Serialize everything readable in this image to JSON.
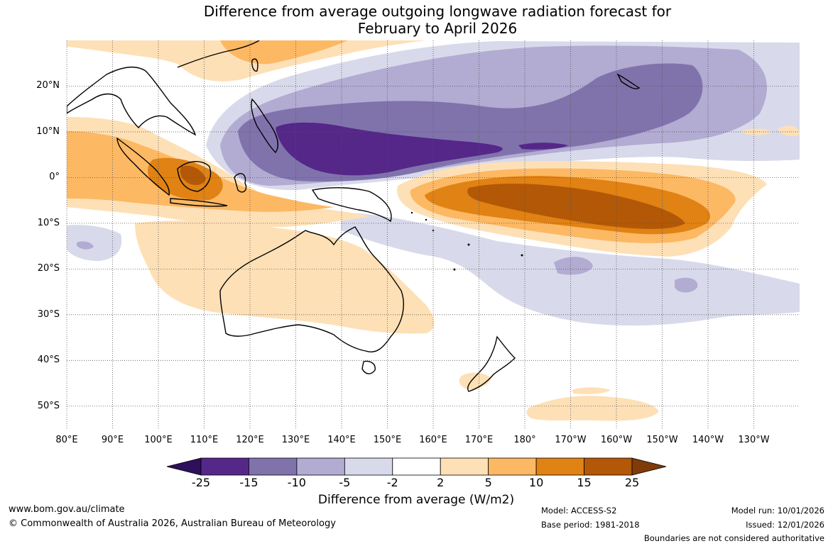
{
  "title": {
    "line1": "Difference from average outgoing longwave radiation forecast for",
    "line2": "February to April 2026"
  },
  "map": {
    "lat_labels": [
      "20°N",
      "10°N",
      "0°",
      "10°S",
      "20°S",
      "30°S",
      "40°S",
      "50°S"
    ],
    "lon_labels": [
      "80°E",
      "90°E",
      "100°E",
      "110°E",
      "120°E",
      "130°E",
      "140°E",
      "150°E",
      "160°E",
      "170°E",
      "180°",
      "170°W",
      "160°W",
      "150°W",
      "140°W",
      "130°W"
    ],
    "lat_values": [
      20,
      10,
      0,
      -10,
      -20,
      -30,
      -40,
      -50
    ],
    "lon_values": [
      80,
      90,
      100,
      110,
      120,
      130,
      140,
      150,
      160,
      170,
      180,
      190,
      200,
      210,
      220,
      230
    ],
    "extent": {
      "lon_min": 80,
      "lon_max": 240,
      "lat_min": -55,
      "lat_max": 30
    }
  },
  "colorbar": {
    "labels": [
      "-25",
      "-15",
      "-10",
      "-5",
      "-2",
      "2",
      "5",
      "10",
      "15",
      "25"
    ],
    "colors": [
      "#2d0f5c",
      "#542788",
      "#8073ac",
      "#b2abd2",
      "#d8daeb",
      "#ffffff",
      "#fee0b6",
      "#fdb863",
      "#e08214",
      "#b35806",
      "#7f3b08"
    ],
    "title": "Difference from average (W/m2)"
  },
  "footer": {
    "website": "www.bom.gov.au/climate",
    "copyright": "© Commonwealth of Australia 2026, Australian Bureau of Meteorology",
    "model": "Model: ACCESS-S2",
    "base_period": "Base period: 1981-2018",
    "model_run": "Model run: 10/01/2026",
    "issued": "Issued: 12/01/2026",
    "boundaries": "Boundaries are not considered authoritative"
  }
}
